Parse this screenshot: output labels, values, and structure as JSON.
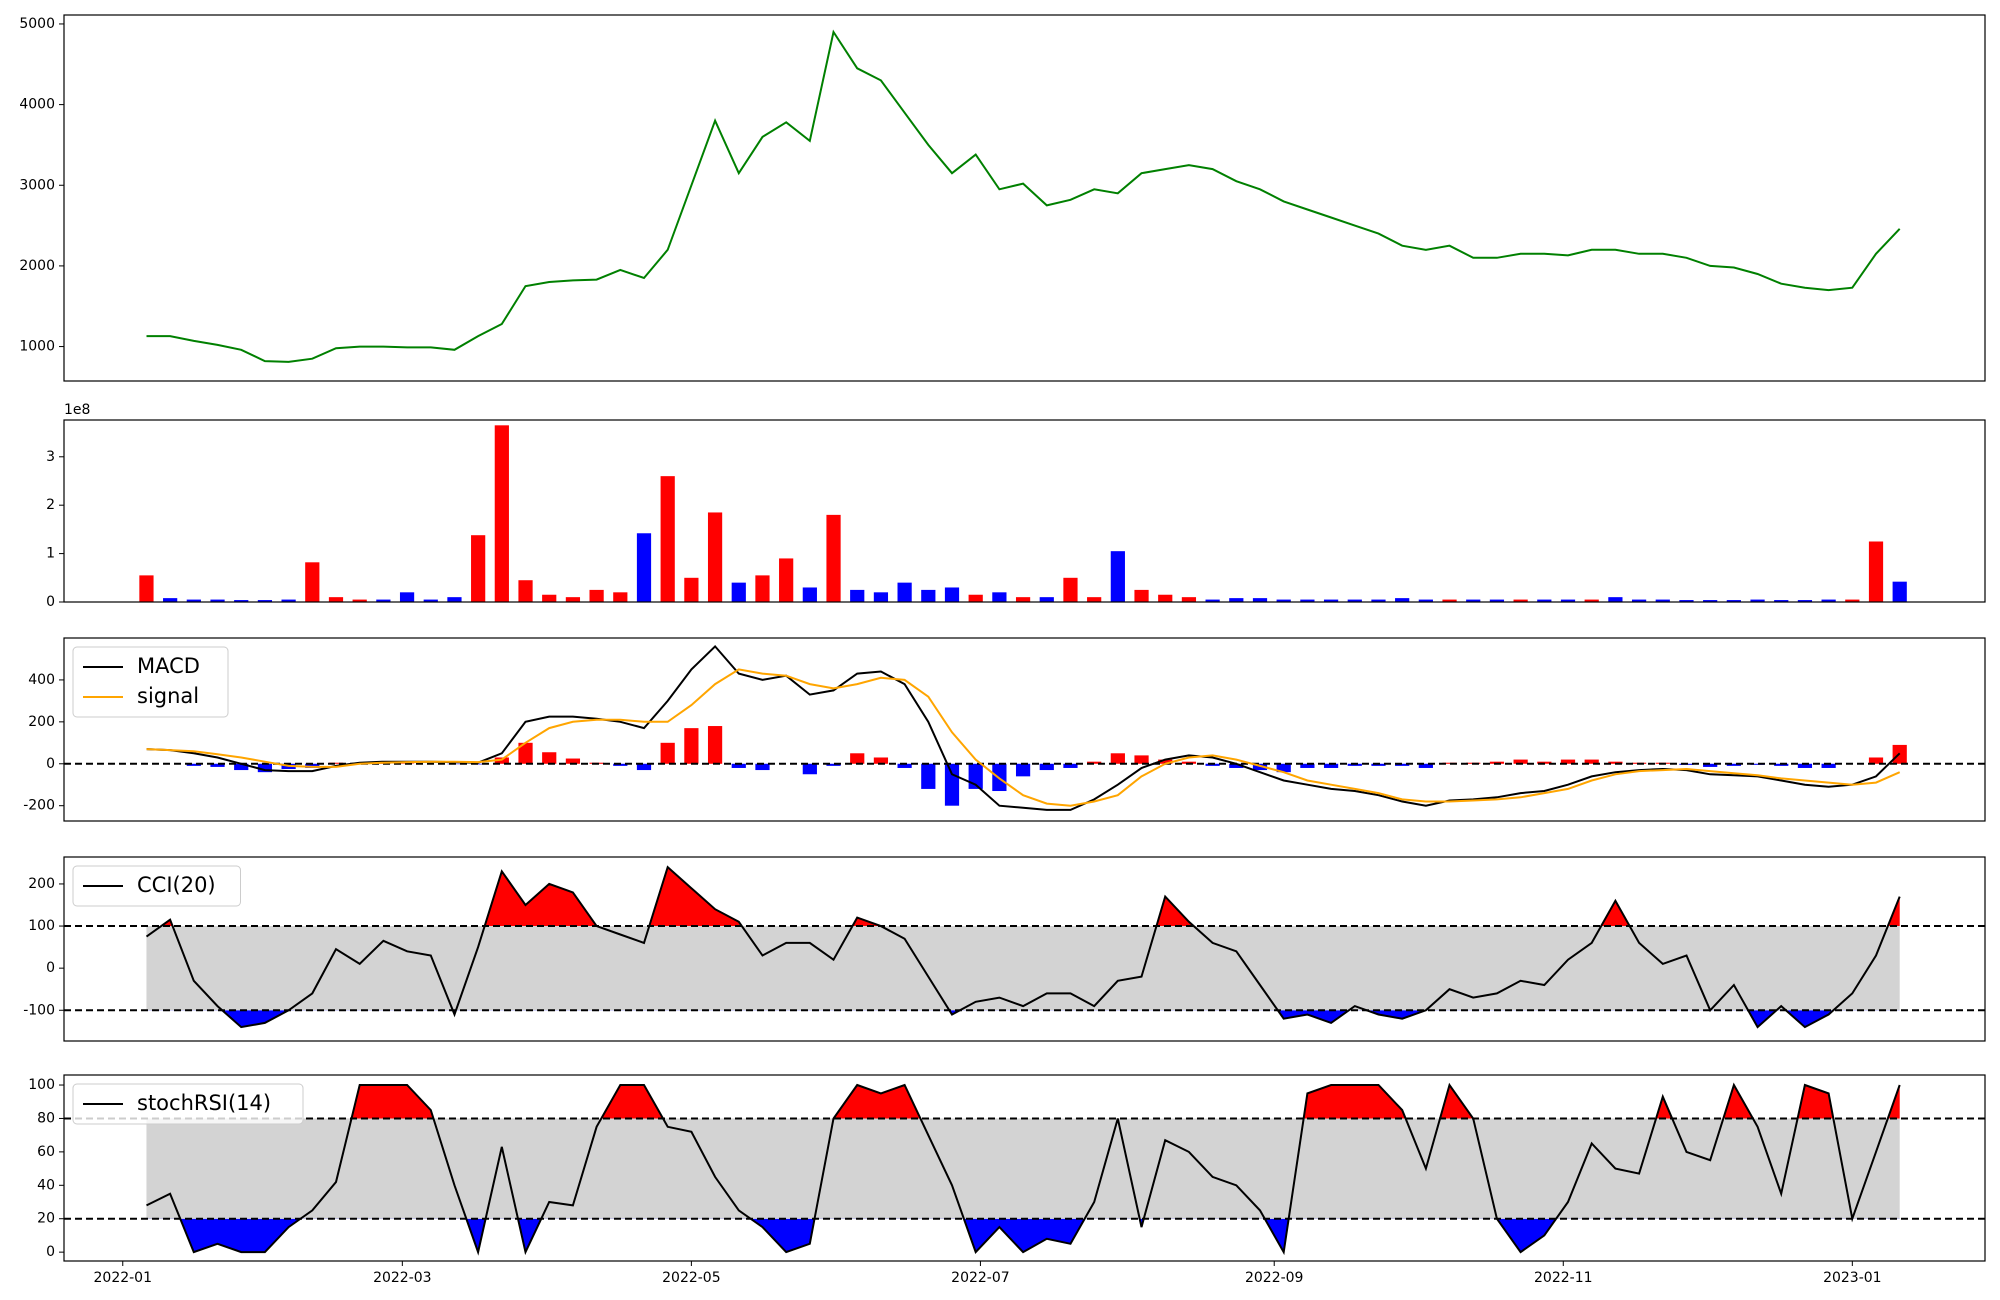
{
  "chart_data": [
    {
      "type": "line",
      "x": [
        5,
        10,
        15,
        20,
        25,
        30,
        35,
        40,
        45,
        50,
        55,
        60,
        65,
        70,
        75,
        80,
        85,
        90,
        95,
        100,
        105,
        110,
        115,
        120,
        125,
        130,
        135,
        140,
        145,
        150,
        155,
        160,
        165,
        170,
        175,
        180,
        185,
        190,
        195,
        200,
        205,
        210,
        215,
        220,
        225,
        230,
        235,
        240,
        245,
        250,
        255,
        260,
        265,
        270,
        275,
        280,
        285,
        290,
        295,
        300,
        305,
        310,
        315,
        320,
        325,
        330,
        335,
        340,
        345,
        350,
        355,
        360,
        365,
        370,
        375
      ],
      "series": [
        {
          "color": "green",
          "values": [
            1130,
            1130,
            1070,
            1020,
            960,
            820,
            810,
            850,
            980,
            1000,
            1000,
            990,
            990,
            960,
            1130,
            1280,
            1750,
            1800,
            1820,
            1830,
            1950,
            1850,
            2200,
            3000,
            3800,
            3150,
            3600,
            3780,
            3550,
            4900,
            4450,
            4300,
            3900,
            3500,
            3150,
            3380,
            2950,
            3020,
            2750,
            2820,
            2950,
            2900,
            3150,
            3200,
            3250,
            3200,
            3050,
            2950,
            2800,
            2700,
            2600,
            2500,
            2400,
            2250,
            2200,
            2250,
            2100,
            2100,
            2150,
            2150,
            2130,
            2200,
            2200,
            2150,
            2150,
            2100,
            2000,
            1980,
            1900,
            1780,
            1730,
            1700,
            1730,
            2150,
            2460
          ]
        }
      ],
      "xlim": [
        -12.4,
        393
      ],
      "ylim": [
        573,
        5111
      ],
      "yticks": [
        1000,
        2000,
        3000,
        4000,
        5000
      ]
    },
    {
      "type": "bar",
      "offset_label": "1e8",
      "x": [
        5,
        10,
        15,
        20,
        25,
        30,
        35,
        40,
        45,
        50,
        55,
        60,
        65,
        70,
        75,
        80,
        85,
        90,
        95,
        100,
        105,
        110,
        115,
        120,
        125,
        130,
        135,
        140,
        145,
        150,
        155,
        160,
        165,
        170,
        175,
        180,
        185,
        190,
        195,
        200,
        205,
        210,
        215,
        220,
        225,
        230,
        235,
        240,
        245,
        250,
        255,
        260,
        265,
        270,
        275,
        280,
        285,
        290,
        295,
        300,
        305,
        310,
        315,
        320,
        325,
        330,
        335,
        340,
        345,
        350,
        355,
        360,
        365,
        370,
        375
      ],
      "values": [
        0.55,
        0.08,
        0.05,
        0.05,
        0.04,
        0.04,
        0.05,
        0.82,
        0.1,
        0.05,
        0.05,
        0.2,
        0.05,
        0.1,
        1.38,
        3.65,
        0.45,
        0.15,
        0.1,
        0.25,
        0.2,
        1.42,
        2.6,
        0.5,
        1.85,
        0.4,
        0.55,
        0.9,
        0.3,
        1.8,
        0.25,
        0.2,
        0.4,
        0.25,
        0.3,
        0.15,
        0.2,
        0.1,
        0.1,
        0.5,
        0.1,
        1.05,
        0.25,
        0.15,
        0.1,
        0.05,
        0.08,
        0.08,
        0.05,
        0.05,
        0.05,
        0.05,
        0.05,
        0.08,
        0.05,
        0.05,
        0.05,
        0.05,
        0.05,
        0.05,
        0.05,
        0.05,
        0.1,
        0.05,
        0.05,
        0.04,
        0.04,
        0.04,
        0.05,
        0.04,
        0.04,
        0.05,
        0.05,
        1.25,
        0.42
      ],
      "colors": [
        "red",
        "blue",
        "blue",
        "blue",
        "blue",
        "blue",
        "blue",
        "red",
        "red",
        "red",
        "blue",
        "blue",
        "blue",
        "blue",
        "red",
        "red",
        "red",
        "red",
        "red",
        "red",
        "red",
        "blue",
        "red",
        "red",
        "red",
        "blue",
        "red",
        "red",
        "blue",
        "red",
        "blue",
        "blue",
        "blue",
        "blue",
        "blue",
        "red",
        "blue",
        "red",
        "blue",
        "red",
        "red",
        "blue",
        "red",
        "red",
        "red",
        "blue",
        "blue",
        "blue",
        "blue",
        "blue",
        "blue",
        "blue",
        "blue",
        "blue",
        "blue",
        "red",
        "blue",
        "blue",
        "red",
        "blue",
        "blue",
        "red",
        "blue",
        "blue",
        "blue",
        "blue",
        "blue",
        "blue",
        "blue",
        "blue",
        "blue",
        "blue",
        "red",
        "red",
        "blue"
      ],
      "xlim": [
        -12.4,
        393
      ],
      "ylim": [
        0,
        3.76
      ],
      "yticks": [
        0,
        1,
        2,
        3
      ]
    },
    {
      "type": "line",
      "x": [
        5,
        10,
        15,
        20,
        25,
        30,
        35,
        40,
        45,
        50,
        55,
        60,
        65,
        70,
        75,
        80,
        85,
        90,
        95,
        100,
        105,
        110,
        115,
        120,
        125,
        130,
        135,
        140,
        145,
        150,
        155,
        160,
        165,
        170,
        175,
        180,
        185,
        190,
        195,
        200,
        205,
        210,
        215,
        220,
        225,
        230,
        235,
        240,
        245,
        250,
        255,
        260,
        265,
        270,
        275,
        280,
        285,
        290,
        295,
        300,
        305,
        310,
        315,
        320,
        325,
        330,
        335,
        340,
        345,
        350,
        355,
        360,
        365,
        370,
        375
      ],
      "series": [
        {
          "name": "MACD",
          "color": "black",
          "values": [
            70,
            65,
            50,
            30,
            0,
            -30,
            -35,
            -35,
            -10,
            5,
            10,
            10,
            10,
            8,
            5,
            50,
            200,
            225,
            225,
            215,
            200,
            170,
            300,
            450,
            560,
            430,
            400,
            420,
            330,
            350,
            430,
            440,
            380,
            200,
            -50,
            -100,
            -200,
            -210,
            -220,
            -220,
            -170,
            -100,
            -20,
            20,
            40,
            30,
            0,
            -40,
            -80,
            -100,
            -120,
            -130,
            -150,
            -180,
            -200,
            -175,
            -170,
            -160,
            -140,
            -130,
            -100,
            -60,
            -40,
            -30,
            -25,
            -30,
            -50,
            -55,
            -60,
            -80,
            -100,
            -110,
            -100,
            -60,
            50
          ]
        },
        {
          "name": "signal",
          "color": "orange",
          "values": [
            70,
            65,
            60,
            45,
            30,
            10,
            -10,
            -15,
            -15,
            0,
            5,
            8,
            10,
            10,
            8,
            20,
            100,
            170,
            200,
            210,
            210,
            200,
            200,
            280,
            380,
            450,
            430,
            420,
            380,
            360,
            380,
            410,
            400,
            320,
            150,
            20,
            -70,
            -150,
            -190,
            -200,
            -180,
            -150,
            -60,
            0,
            30,
            40,
            20,
            -10,
            -40,
            -80,
            -100,
            -120,
            -140,
            -170,
            -180,
            -180,
            -175,
            -170,
            -160,
            -140,
            -120,
            -80,
            -50,
            -35,
            -30,
            -25,
            -35,
            -45,
            -55,
            -70,
            -80,
            -90,
            -100,
            -90,
            -40
          ]
        }
      ],
      "histogram": {
        "positive_color": "red",
        "negative_color": "blue",
        "values": [
          0,
          0,
          -10,
          -15,
          -30,
          -40,
          -25,
          -20,
          5,
          5,
          5,
          2,
          0,
          -2,
          -3,
          30,
          100,
          55,
          25,
          5,
          -10,
          -30,
          100,
          170,
          180,
          -20,
          -30,
          0,
          -50,
          -10,
          50,
          30,
          -20,
          -120,
          -200,
          -120,
          -130,
          -60,
          -30,
          -20,
          10,
          50,
          40,
          20,
          10,
          -10,
          -20,
          -30,
          -40,
          -20,
          -20,
          -10,
          -10,
          -10,
          -20,
          5,
          5,
          10,
          20,
          10,
          20,
          20,
          10,
          5,
          5,
          -5,
          -15,
          -10,
          -5,
          -10,
          -20,
          -20,
          0,
          30,
          90
        ]
      },
      "hlines": [
        0
      ],
      "xlim": [
        -12.4,
        393
      ],
      "ylim": [
        -273,
        600
      ],
      "yticks": [
        -200,
        0,
        200,
        400
      ]
    },
    {
      "type": "line",
      "x": [
        5,
        10,
        15,
        20,
        25,
        30,
        35,
        40,
        45,
        50,
        55,
        60,
        65,
        70,
        75,
        80,
        85,
        90,
        95,
        100,
        105,
        110,
        115,
        120,
        125,
        130,
        135,
        140,
        145,
        150,
        155,
        160,
        165,
        170,
        175,
        180,
        185,
        190,
        195,
        200,
        205,
        210,
        215,
        220,
        225,
        230,
        235,
        240,
        245,
        250,
        255,
        260,
        265,
        270,
        275,
        280,
        285,
        290,
        295,
        300,
        305,
        310,
        315,
        320,
        325,
        330,
        335,
        340,
        345,
        350,
        355,
        360,
        365,
        370,
        375
      ],
      "series": [
        {
          "name": "CCI(20)",
          "color": "black",
          "values": [
            75,
            115,
            -30,
            -90,
            -140,
            -130,
            -100,
            -60,
            45,
            10,
            65,
            40,
            30,
            -110,
            50,
            230,
            150,
            200,
            180,
            100,
            80,
            60,
            240,
            190,
            140,
            110,
            30,
            60,
            60,
            20,
            120,
            100,
            70,
            -20,
            -110,
            -80,
            -70,
            -90,
            -60,
            -60,
            -90,
            -30,
            -20,
            170,
            110,
            60,
            40,
            -40,
            -120,
            -110,
            -130,
            -90,
            -110,
            -120,
            -100,
            -50,
            -70,
            -60,
            -30,
            -40,
            20,
            60,
            160,
            60,
            10,
            30,
            -100,
            -40,
            -140,
            -90,
            -140,
            -110,
            -60,
            30,
            170
          ]
        }
      ],
      "hlines": [
        -100,
        100
      ],
      "fill": {
        "between": "lightgray",
        "above": "red",
        "below": "blue"
      },
      "xlim": [
        -12.4,
        393
      ],
      "ylim": [
        -173,
        264
      ],
      "yticks": [
        -100,
        0,
        100,
        200
      ]
    },
    {
      "type": "line",
      "x": [
        5,
        10,
        15,
        20,
        25,
        30,
        35,
        40,
        45,
        50,
        55,
        60,
        65,
        70,
        75,
        80,
        85,
        90,
        95,
        100,
        105,
        110,
        115,
        120,
        125,
        130,
        135,
        140,
        145,
        150,
        155,
        160,
        165,
        170,
        175,
        180,
        185,
        190,
        195,
        200,
        205,
        210,
        215,
        220,
        225,
        230,
        235,
        240,
        245,
        250,
        255,
        260,
        265,
        270,
        275,
        280,
        285,
        290,
        295,
        300,
        305,
        310,
        315,
        320,
        325,
        330,
        335,
        340,
        345,
        350,
        355,
        360,
        365,
        370,
        375
      ],
      "series": [
        {
          "name": "stochRSI(14)",
          "color": "black",
          "values": [
            28,
            35,
            0,
            5,
            0,
            0,
            15,
            25,
            42,
            100,
            100,
            100,
            85,
            40,
            0,
            63,
            0,
            30,
            28,
            75,
            100,
            100,
            75,
            72,
            45,
            25,
            15,
            0,
            5,
            80,
            100,
            95,
            100,
            70,
            40,
            0,
            15,
            0,
            8,
            5,
            30,
            80,
            15,
            67,
            60,
            45,
            40,
            25,
            0,
            95,
            100,
            100,
            100,
            85,
            50,
            100,
            80,
            20,
            0,
            10,
            30,
            65,
            50,
            47,
            93,
            60,
            55,
            100,
            75,
            35,
            100,
            95,
            20,
            60,
            100
          ]
        }
      ],
      "hlines": [
        20,
        80
      ],
      "fill": {
        "between": "lightgray",
        "above": "red",
        "below": "blue"
      },
      "xlim": [
        -12.4,
        393
      ],
      "ylim": [
        -5.3,
        106
      ],
      "yticks": [
        0,
        20,
        40,
        60,
        80,
        100
      ],
      "xticks": [
        {
          "value": 0,
          "label": "2022-01"
        },
        {
          "value": 59,
          "label": "2022-03"
        },
        {
          "value": 120,
          "label": "2022-05"
        },
        {
          "value": 181,
          "label": "2022-07"
        },
        {
          "value": 243,
          "label": "2022-09"
        },
        {
          "value": 304,
          "label": "2022-11"
        },
        {
          "value": 365,
          "label": "2023-01"
        }
      ]
    }
  ]
}
